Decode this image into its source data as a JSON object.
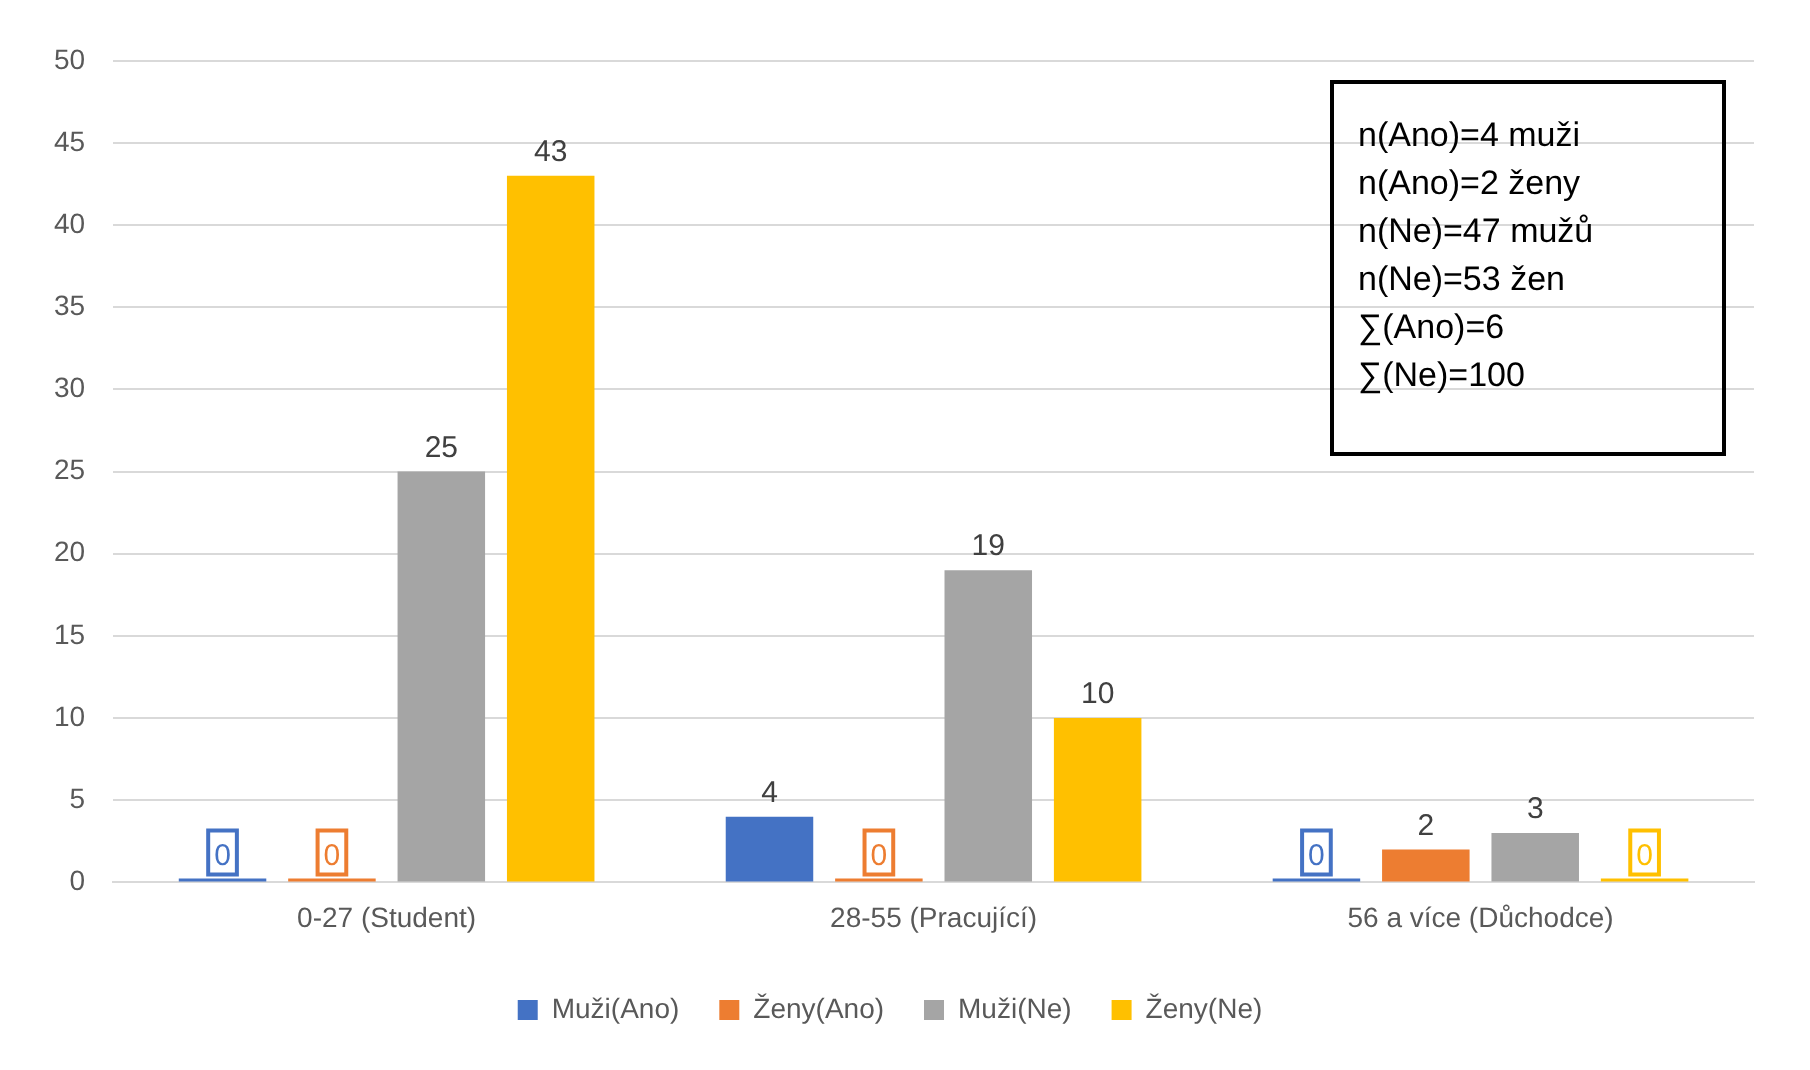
{
  "chart_data": {
    "type": "bar",
    "categories": [
      "0-27 (Student)",
      "28-55 (Pracující)",
      "56 a více (Důchodce)"
    ],
    "series": [
      {
        "name": "Muži(Ano)",
        "color": "#4472c4",
        "values": [
          0,
          4,
          0
        ]
      },
      {
        "name": "Ženy(Ano)",
        "color": "#ed7d31",
        "values": [
          0,
          0,
          2
        ]
      },
      {
        "name": "Muži(Ne)",
        "color": "#a5a5a5",
        "values": [
          25,
          19,
          3
        ]
      },
      {
        "name": "Ženy(Ne)",
        "color": "#ffc000",
        "values": [
          43,
          10,
          0
        ]
      }
    ],
    "ylim": [
      0,
      50
    ],
    "yticks": [
      0,
      5,
      10,
      15,
      20,
      25,
      30,
      35,
      40,
      45,
      50
    ],
    "grid": "y",
    "legend": "bottom",
    "data_labels": true,
    "annotations": [
      "n(Ano)=4 muži",
      "n(Ano)=2 ženy",
      "n(Ne)=47 mužů",
      "n(Ne)=53 žen",
      "∑(Ano)=6",
      "∑(Ne)=100"
    ]
  }
}
